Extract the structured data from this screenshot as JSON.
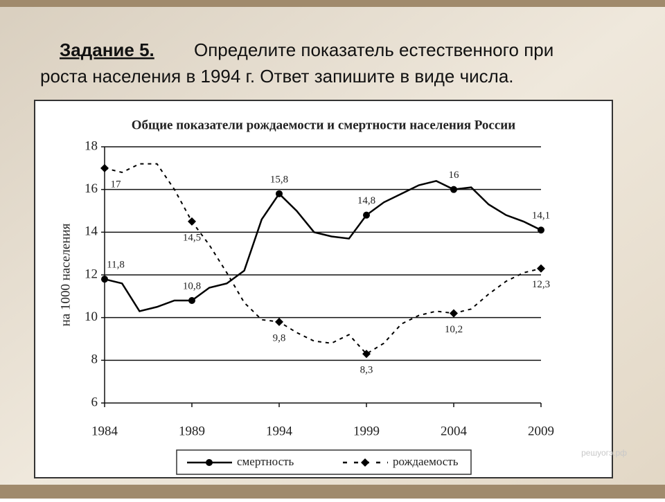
{
  "task": {
    "label": "Задание 5.",
    "lines": [
      "Определите показатель естественного при",
      "роста населения в 1994 г. Ответ запишите в виде числа."
    ]
  },
  "watermark": "решуогэ.рф",
  "chart_data": {
    "type": "line",
    "title": "Общие показатели рождаемости и смертности населения России",
    "ylabel": "на 1000 населения",
    "x": [
      1984,
      1985,
      1986,
      1987,
      1988,
      1989,
      1990,
      1991,
      1992,
      1993,
      1994,
      1995,
      1996,
      1997,
      1998,
      1999,
      2000,
      2001,
      2002,
      2003,
      2004,
      2005,
      2006,
      2007,
      2008,
      2009
    ],
    "xlim": [
      1984,
      2009
    ],
    "xticks": [
      1984,
      1989,
      1994,
      1999,
      2004,
      2009
    ],
    "ylim": [
      6,
      18
    ],
    "yticks": [
      6,
      8,
      10,
      12,
      14,
      16,
      18
    ],
    "grid": true,
    "series": [
      {
        "name": "смертность",
        "color": "#000000",
        "dash": false,
        "marker": "circle",
        "values": [
          11.8,
          11.6,
          10.3,
          10.5,
          10.8,
          10.8,
          11.4,
          11.6,
          12.2,
          14.6,
          15.8,
          15.0,
          14.0,
          13.8,
          13.7,
          14.8,
          15.4,
          15.8,
          16.2,
          16.4,
          16.0,
          16.1,
          15.3,
          14.8,
          14.5,
          14.1
        ],
        "value_labels": [
          "11,8",
          null,
          null,
          null,
          null,
          "10,8",
          null,
          null,
          null,
          null,
          "15,8",
          null,
          null,
          null,
          null,
          "14,8",
          null,
          null,
          null,
          null,
          "16",
          null,
          null,
          null,
          null,
          "14,1"
        ]
      },
      {
        "name": "рождаемость",
        "color": "#000000",
        "dash": true,
        "marker": "diamond",
        "values": [
          17.0,
          16.8,
          17.2,
          17.2,
          16.0,
          14.5,
          13.4,
          12.1,
          10.7,
          9.9,
          9.8,
          9.3,
          8.9,
          8.8,
          9.2,
          8.3,
          8.8,
          9.7,
          10.1,
          10.3,
          10.2,
          10.4,
          11.1,
          11.7,
          12.1,
          12.3
        ],
        "value_labels": [
          "17",
          null,
          null,
          null,
          null,
          "14,5",
          null,
          null,
          null,
          null,
          "9,8",
          null,
          null,
          null,
          null,
          "8,3",
          null,
          null,
          null,
          null,
          "10,2",
          null,
          null,
          null,
          null,
          "12,3"
        ]
      }
    ]
  }
}
